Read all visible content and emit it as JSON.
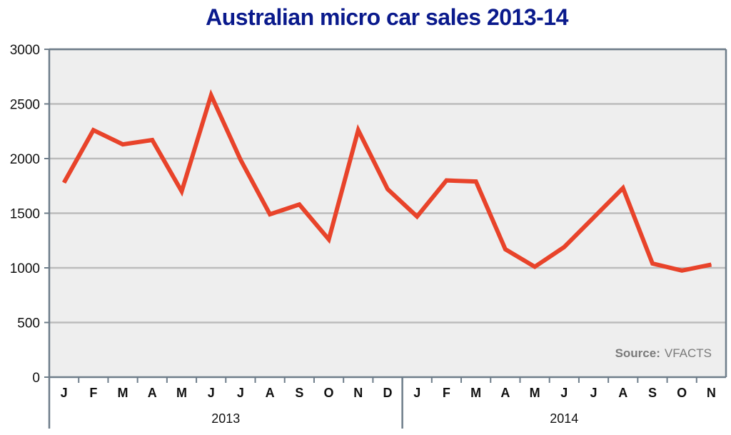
{
  "chart_data": {
    "type": "line",
    "title": "Australian micro car sales 2013-14",
    "xlabel": "",
    "ylabel": "",
    "ylim": [
      0,
      3000
    ],
    "yticks": [
      0,
      500,
      1000,
      1500,
      2000,
      2500,
      3000
    ],
    "grid": true,
    "months": [
      "J",
      "F",
      "M",
      "A",
      "M",
      "J",
      "J",
      "A",
      "S",
      "O",
      "N",
      "D",
      "J",
      "F",
      "M",
      "A",
      "M",
      "J",
      "J",
      "A",
      "S",
      "O",
      "N"
    ],
    "years": [
      {
        "label": "2013",
        "months": 12
      },
      {
        "label": "2014",
        "months": 11
      }
    ],
    "series": [
      {
        "color": "#e8432a",
        "values": [
          1780,
          2260,
          2130,
          2170,
          1700,
          2580,
          1990,
          1490,
          1580,
          1260,
          2260,
          1720,
          1470,
          1800,
          1790,
          1170,
          1010,
          1190,
          1460,
          1730,
          1040,
          975,
          1030
        ]
      }
    ],
    "source": {
      "label": "Source:",
      "value": "VFACTS"
    }
  },
  "colors": {
    "plot_background": "#eeeeee",
    "gridline": "#bcbcbc",
    "axis": "#6e7d8a",
    "title": "#0a1a8c",
    "line": "#e8432a"
  }
}
